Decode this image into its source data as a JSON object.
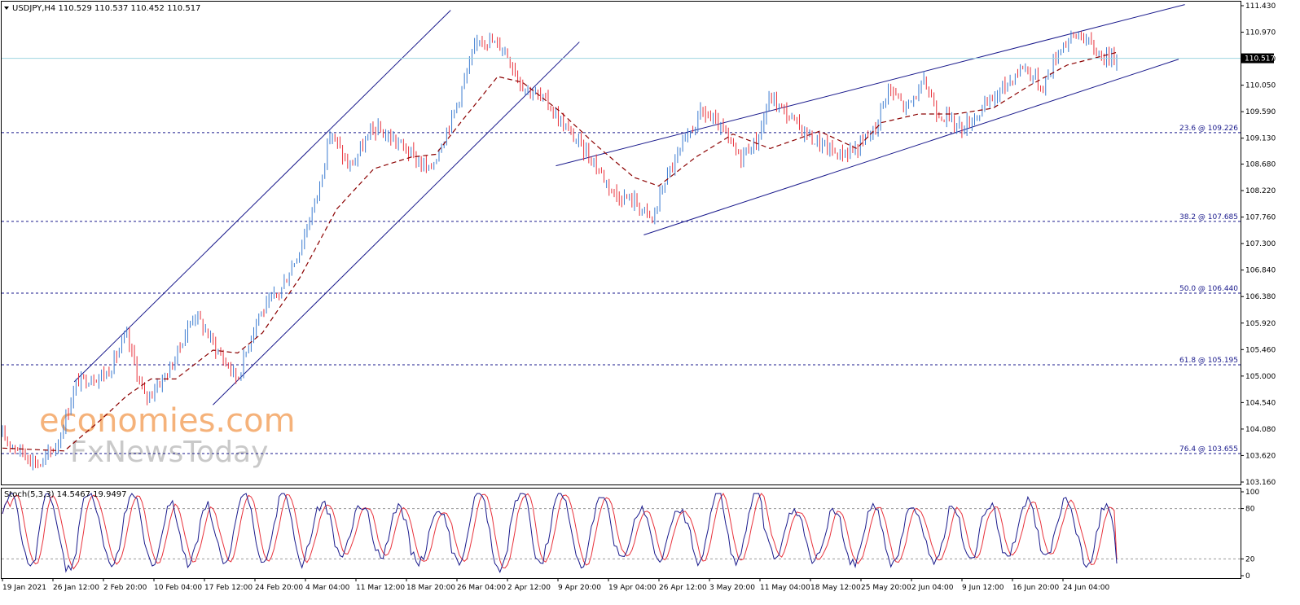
{
  "chart_data": {
    "type": "candlestick",
    "symbol_header": "USDJPY,H4  110.529 110.537 110.452 110.517",
    "current_price": 110.517,
    "current_price_label": "110.517",
    "price_axis": {
      "ylim": [
        103.16,
        111.43
      ],
      "ticks": [
        "111.430",
        "110.970",
        "110.510",
        "110.050",
        "109.590",
        "109.130",
        "108.680",
        "108.220",
        "107.760",
        "107.300",
        "106.840",
        "106.380",
        "105.920",
        "105.460",
        "105.000",
        "104.540",
        "104.080",
        "103.620",
        "103.160"
      ]
    },
    "time_axis": {
      "ticks": [
        "19 Jan 2021",
        "26 Jan 12:00",
        "2 Feb 20:00",
        "10 Feb 04:00",
        "17 Feb 12:00",
        "24 Feb 20:00",
        "4 Mar 04:00",
        "11 Mar 12:00",
        "18 Mar 20:00",
        "26 Mar 04:00",
        "2 Apr 12:00",
        "9 Apr 20:00",
        "19 Apr 04:00",
        "26 Apr 12:00",
        "3 May 20:00",
        "11 May 04:00",
        "18 May 12:00",
        "25 May 20:00",
        "2 Jun 04:00",
        "9 Jun 12:00",
        "16 Jun 20:00",
        "24 Jun 04:00"
      ]
    },
    "fibonacci_levels": [
      {
        "label": "23.6 @ 109.226",
        "price": 109.226
      },
      {
        "label": "38.2 @ 107.685",
        "price": 107.685
      },
      {
        "label": "50.0 @ 106.440",
        "price": 106.44
      },
      {
        "label": "61.8 @ 105.195",
        "price": 105.195
      },
      {
        "label": "76.4 @ 103.655",
        "price": 103.655
      }
    ],
    "price_path": [
      {
        "t": 0,
        "p": 103.95
      },
      {
        "t": 0.03,
        "p": 103.45
      },
      {
        "t": 0.045,
        "p": 103.85
      },
      {
        "t": 0.06,
        "p": 104.9
      },
      {
        "t": 0.085,
        "p": 105.05
      },
      {
        "t": 0.1,
        "p": 105.7
      },
      {
        "t": 0.115,
        "p": 104.6
      },
      {
        "t": 0.135,
        "p": 105.1
      },
      {
        "t": 0.155,
        "p": 106.1
      },
      {
        "t": 0.175,
        "p": 105.4
      },
      {
        "t": 0.19,
        "p": 104.95
      },
      {
        "t": 0.205,
        "p": 106.0
      },
      {
        "t": 0.225,
        "p": 106.5
      },
      {
        "t": 0.24,
        "p": 107.2
      },
      {
        "t": 0.255,
        "p": 108.2
      },
      {
        "t": 0.265,
        "p": 109.25
      },
      {
        "t": 0.28,
        "p": 108.6
      },
      {
        "t": 0.3,
        "p": 109.3
      },
      {
        "t": 0.32,
        "p": 109.05
      },
      {
        "t": 0.345,
        "p": 108.55
      },
      {
        "t": 0.365,
        "p": 109.6
      },
      {
        "t": 0.385,
        "p": 110.9
      },
      {
        "t": 0.405,
        "p": 110.7
      },
      {
        "t": 0.42,
        "p": 110.05
      },
      {
        "t": 0.44,
        "p": 109.75
      },
      {
        "t": 0.455,
        "p": 109.3
      },
      {
        "t": 0.475,
        "p": 108.8
      },
      {
        "t": 0.495,
        "p": 108.15
      },
      {
        "t": 0.51,
        "p": 108.05
      },
      {
        "t": 0.525,
        "p": 107.7
      },
      {
        "t": 0.535,
        "p": 108.4
      },
      {
        "t": 0.55,
        "p": 109.0
      },
      {
        "t": 0.565,
        "p": 109.6
      },
      {
        "t": 0.58,
        "p": 109.3
      },
      {
        "t": 0.595,
        "p": 108.8
      },
      {
        "t": 0.61,
        "p": 109.1
      },
      {
        "t": 0.62,
        "p": 109.85
      },
      {
        "t": 0.64,
        "p": 109.4
      },
      {
        "t": 0.655,
        "p": 109.1
      },
      {
        "t": 0.675,
        "p": 108.85
      },
      {
        "t": 0.69,
        "p": 108.95
      },
      {
        "t": 0.705,
        "p": 109.3
      },
      {
        "t": 0.715,
        "p": 110.0
      },
      {
        "t": 0.73,
        "p": 109.65
      },
      {
        "t": 0.745,
        "p": 110.1
      },
      {
        "t": 0.755,
        "p": 109.6
      },
      {
        "t": 0.775,
        "p": 109.3
      },
      {
        "t": 0.795,
        "p": 109.7
      },
      {
        "t": 0.81,
        "p": 110.05
      },
      {
        "t": 0.825,
        "p": 110.4
      },
      {
        "t": 0.84,
        "p": 110.0
      },
      {
        "t": 0.855,
        "p": 110.75
      },
      {
        "t": 0.87,
        "p": 110.95
      },
      {
        "t": 0.885,
        "p": 110.6
      },
      {
        "t": 0.9,
        "p": 110.5
      }
    ],
    "moving_average": {
      "style": "dashed",
      "color": "#8b0000",
      "path": [
        {
          "t": 0,
          "p": 103.75
        },
        {
          "t": 0.05,
          "p": 103.7
        },
        {
          "t": 0.08,
          "p": 104.25
        },
        {
          "t": 0.1,
          "p": 104.65
        },
        {
          "t": 0.12,
          "p": 104.95
        },
        {
          "t": 0.14,
          "p": 104.95
        },
        {
          "t": 0.17,
          "p": 105.45
        },
        {
          "t": 0.19,
          "p": 105.4
        },
        {
          "t": 0.21,
          "p": 105.75
        },
        {
          "t": 0.24,
          "p": 106.7
        },
        {
          "t": 0.27,
          "p": 107.9
        },
        {
          "t": 0.3,
          "p": 108.6
        },
        {
          "t": 0.33,
          "p": 108.8
        },
        {
          "t": 0.35,
          "p": 108.85
        },
        {
          "t": 0.37,
          "p": 109.4
        },
        {
          "t": 0.4,
          "p": 110.2
        },
        {
          "t": 0.42,
          "p": 110.1
        },
        {
          "t": 0.45,
          "p": 109.6
        },
        {
          "t": 0.48,
          "p": 109.0
        },
        {
          "t": 0.51,
          "p": 108.45
        },
        {
          "t": 0.53,
          "p": 108.3
        },
        {
          "t": 0.56,
          "p": 108.8
        },
        {
          "t": 0.59,
          "p": 109.2
        },
        {
          "t": 0.62,
          "p": 108.95
        },
        {
          "t": 0.66,
          "p": 109.25
        },
        {
          "t": 0.69,
          "p": 108.95
        },
        {
          "t": 0.71,
          "p": 109.4
        },
        {
          "t": 0.74,
          "p": 109.55
        },
        {
          "t": 0.77,
          "p": 109.55
        },
        {
          "t": 0.8,
          "p": 109.65
        },
        {
          "t": 0.83,
          "p": 110.05
        },
        {
          "t": 0.86,
          "p": 110.4
        },
        {
          "t": 0.9,
          "p": 110.62
        }
      ]
    },
    "channels": [
      {
        "name": "",
        "color": "#1a1a8c",
        "lines": [
          {
            "from": {
              "t": 0.058,
              "p": 104.9
            },
            "to": {
              "t": 0.362,
              "p": 111.35
            }
          },
          {
            "from": {
              "t": 0.17,
              "p": 104.5
            },
            "to": {
              "t": 0.466,
              "p": 110.8
            }
          }
        ]
      },
      {
        "name": "",
        "color": "#1a1a8c",
        "lines": [
          {
            "from": {
              "t": 0.447,
              "p": 108.65
            },
            "to": {
              "t": 0.955,
              "p": 111.45
            }
          },
          {
            "from": {
              "t": 0.518,
              "p": 107.45
            },
            "to": {
              "t": 0.95,
              "p": 110.5
            }
          }
        ]
      }
    ],
    "indicator": {
      "label": "Stoch(5,3,3) 14.5467 19.9497",
      "main_value": 14.5467,
      "signal_value": 19.9497,
      "ylim": [
        0,
        100
      ],
      "ticks": [
        "100",
        "80",
        "20",
        "0"
      ],
      "levels": [
        80,
        20
      ],
      "main_color": "#1a1a8c",
      "signal_color": "#e8323c"
    },
    "grid": false
  },
  "watermark": {
    "line1": "economies.com",
    "line2": "FxNewsToday",
    "color_orange": "#f5b27a",
    "color_gray": "#c9c9c9"
  }
}
